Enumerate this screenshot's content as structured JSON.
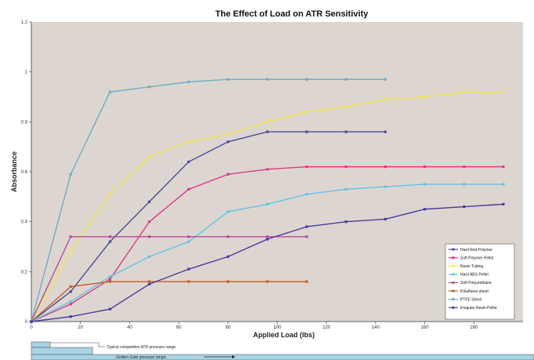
{
  "chart_data": {
    "type": "line",
    "title": "The Effect of Load on ATR Sensitivity",
    "xlabel": "Applied Load (lbs)",
    "ylabel": "Absorbance",
    "xlim": [
      0,
      200
    ],
    "ylim": [
      0,
      1.2
    ],
    "xticks": [
      0,
      20,
      40,
      60,
      80,
      100,
      120,
      140,
      160,
      180
    ],
    "yticks": [
      0,
      0.2,
      0.4,
      0.6,
      0.8,
      1,
      1.2
    ],
    "grid": false,
    "legend_position": "bottom-right",
    "series": [
      {
        "name": "Hard Red Polymer",
        "color": "#4a4a9a",
        "x": [
          0,
          16,
          32,
          48,
          64,
          80,
          96,
          112,
          128,
          144
        ],
        "y": [
          0,
          0.12,
          0.32,
          0.48,
          0.64,
          0.72,
          0.76,
          0.76,
          0.76,
          0.76
        ]
      },
      {
        "name": "Soft Polymer Pellet",
        "color": "#e0358a",
        "x": [
          0,
          16,
          32,
          48,
          64,
          80,
          96,
          112,
          128,
          144,
          160,
          176,
          192
        ],
        "y": [
          0,
          0.07,
          0.17,
          0.4,
          0.53,
          0.59,
          0.61,
          0.62,
          0.62,
          0.62,
          0.62,
          0.62,
          0.62
        ]
      },
      {
        "name": "Resin Tubing",
        "color": "#f5e84a",
        "x": [
          0,
          16,
          32,
          48,
          64,
          80,
          96,
          112,
          128,
          144,
          160,
          176,
          192
        ],
        "y": [
          0,
          0.28,
          0.51,
          0.66,
          0.72,
          0.75,
          0.8,
          0.84,
          0.86,
          0.89,
          0.9,
          0.92,
          0.92
        ]
      },
      {
        "name": "Hard ABS Pellet",
        "color": "#5ec4e6",
        "x": [
          0,
          16,
          32,
          48,
          64,
          80,
          96,
          112,
          128,
          144,
          160,
          176,
          192
        ],
        "y": [
          0,
          0.08,
          0.18,
          0.26,
          0.32,
          0.44,
          0.47,
          0.51,
          0.53,
          0.54,
          0.55,
          0.55,
          0.55
        ]
      },
      {
        "name": "Soft Polyurethane",
        "color": "#b84a9a",
        "x": [
          0,
          16,
          32,
          48,
          64,
          80,
          96,
          112
        ],
        "y": [
          0,
          0.34,
          0.34,
          0.34,
          0.34,
          0.34,
          0.34,
          0.34
        ]
      },
      {
        "name": "Polythene sheet",
        "color": "#c0602a",
        "x": [
          0,
          16,
          32,
          48,
          64,
          80,
          96,
          112
        ],
        "y": [
          0,
          0.14,
          0.16,
          0.16,
          0.16,
          0.16,
          0.16,
          0.16
        ]
      },
      {
        "name": "PTFE Sheet",
        "color": "#6aaccc",
        "x": [
          0,
          16,
          32,
          48,
          64,
          80,
          96,
          112,
          128,
          144
        ],
        "y": [
          0,
          0.59,
          0.92,
          0.94,
          0.96,
          0.97,
          0.97,
          0.97,
          0.97,
          0.97
        ]
      },
      {
        "name": "Irregular Resin Pellet",
        "color": "#4a3aa0",
        "x": [
          0,
          16,
          32,
          48,
          64,
          80,
          96,
          112,
          128,
          144,
          160,
          176,
          192
        ],
        "y": [
          0,
          0.02,
          0.05,
          0.15,
          0.21,
          0.26,
          0.33,
          0.38,
          0.4,
          0.41,
          0.45,
          0.46,
          0.47
        ]
      }
    ],
    "annotations": [
      "Typical competitive ATR pressure range",
      "Golden Gate pressure range"
    ]
  },
  "colors": {
    "plot_background": "#ddd6d0",
    "axis": "#333333",
    "pressure_bar": "#a8d4e6"
  }
}
